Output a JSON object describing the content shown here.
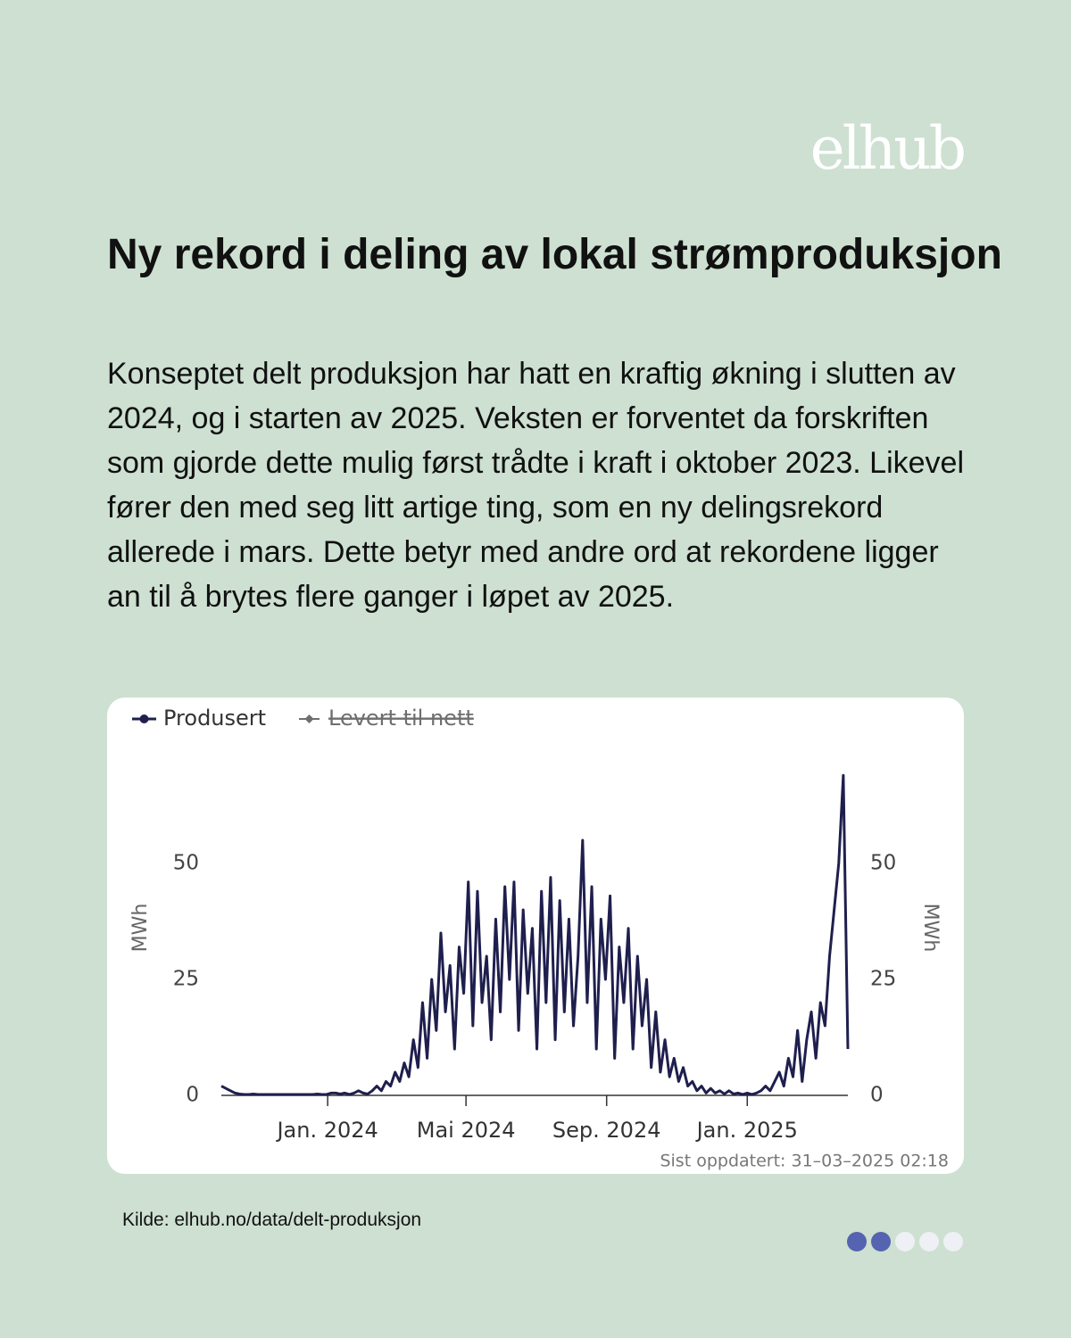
{
  "logo": "elhub",
  "title": "Ny rekord i deling av lokal strømproduksjon",
  "body": "Konseptet delt produksjon har hatt en kraftig økning i slutten av 2024, og i starten av 2025. Veksten er forventet da forskriften som gjorde dette mulig først trådte i kraft i oktober 2023. Likevel fører den med seg litt artige ting, som en ny delingsrekord allerede i mars. Dette betyr med andre ord at rekordene ligger an til å brytes flere ganger i løpet av 2025.",
  "source": "Kilde: elhub.no/data/delt-produksjon",
  "chart_data": {
    "type": "line",
    "ylabel": "MWh",
    "y2label": "MWh",
    "updated": "Sist oppdatert: 31–03–2025 02:18",
    "x": [
      0,
      4,
      8,
      12,
      16,
      20,
      24,
      28,
      32,
      36,
      40,
      44,
      48,
      52,
      56,
      60,
      64,
      68,
      72,
      76,
      80,
      84,
      88,
      92,
      96,
      100,
      104,
      108,
      112,
      116,
      120,
      124,
      128,
      132,
      136,
      140,
      144,
      148,
      152,
      156,
      160,
      164,
      168,
      172,
      176,
      180,
      184,
      188,
      192,
      196,
      200,
      204,
      208,
      212,
      216,
      220,
      224,
      228,
      232,
      236,
      240,
      244,
      248,
      252,
      256,
      260,
      264,
      268,
      272,
      276,
      280,
      284,
      288,
      292,
      296,
      300,
      304,
      308,
      312,
      316,
      320,
      324,
      328,
      332,
      336,
      340,
      344,
      348,
      352,
      356,
      360,
      364,
      368,
      372,
      376,
      380,
      384,
      388,
      392,
      396,
      400,
      404,
      408,
      412,
      416,
      420,
      424,
      428,
      432,
      436,
      440,
      444,
      448,
      452,
      456,
      460,
      464,
      468,
      472,
      476,
      480,
      484,
      488,
      492,
      496,
      500,
      504,
      508,
      512,
      516,
      520,
      524,
      528,
      532,
      536,
      540,
      544,
      548
    ],
    "xlim": [
      0,
      548
    ],
    "xticks": [
      {
        "value": 93,
        "label": "Jan. 2024"
      },
      {
        "value": 214,
        "label": "Mai 2024"
      },
      {
        "value": 337,
        "label": "Sep. 2024"
      },
      {
        "value": 460,
        "label": "Jan. 2025"
      }
    ],
    "ylim": [
      0,
      70
    ],
    "yticks": [
      0,
      25,
      50
    ],
    "y2lim": [
      0,
      70
    ],
    "y2ticks": [
      0,
      25,
      50
    ],
    "grid": false,
    "series": [
      {
        "name": "Produsert",
        "color": "#1f1f4e",
        "values": [
          2,
          1.5,
          1,
          0.5,
          0.3,
          0.2,
          0.2,
          0.3,
          0.2,
          0.2,
          0.2,
          0.2,
          0.2,
          0.2,
          0.2,
          0.2,
          0.2,
          0.2,
          0.2,
          0.2,
          0.2,
          0.3,
          0.2,
          0.2,
          0.5,
          0.5,
          0.3,
          0.5,
          0.2,
          0.5,
          1,
          0.5,
          0.3,
          1,
          2,
          1,
          3,
          2,
          5,
          3,
          7,
          4,
          12,
          6,
          20,
          8,
          25,
          14,
          35,
          18,
          28,
          10,
          32,
          22,
          46,
          15,
          44,
          20,
          30,
          12,
          38,
          18,
          45,
          25,
          46,
          14,
          40,
          22,
          36,
          10,
          44,
          20,
          47,
          12,
          42,
          18,
          38,
          15,
          30,
          55,
          20,
          45,
          10,
          38,
          25,
          43,
          8,
          32,
          20,
          36,
          10,
          30,
          15,
          25,
          6,
          18,
          5,
          12,
          4,
          8,
          3,
          6,
          2,
          3,
          1,
          2,
          0.5,
          1.5,
          0.5,
          1,
          0.3,
          1,
          0.3,
          0.5,
          0.2,
          0.5,
          0.2,
          0.5,
          1,
          2,
          1,
          3,
          5,
          2,
          8,
          4,
          14,
          3,
          12,
          18,
          8,
          20,
          15,
          30,
          40,
          50,
          69,
          10
        ]
      }
    ],
    "hidden_series": [
      {
        "name": "Levert til nett",
        "color": "#6e6e6e"
      }
    ]
  }
}
